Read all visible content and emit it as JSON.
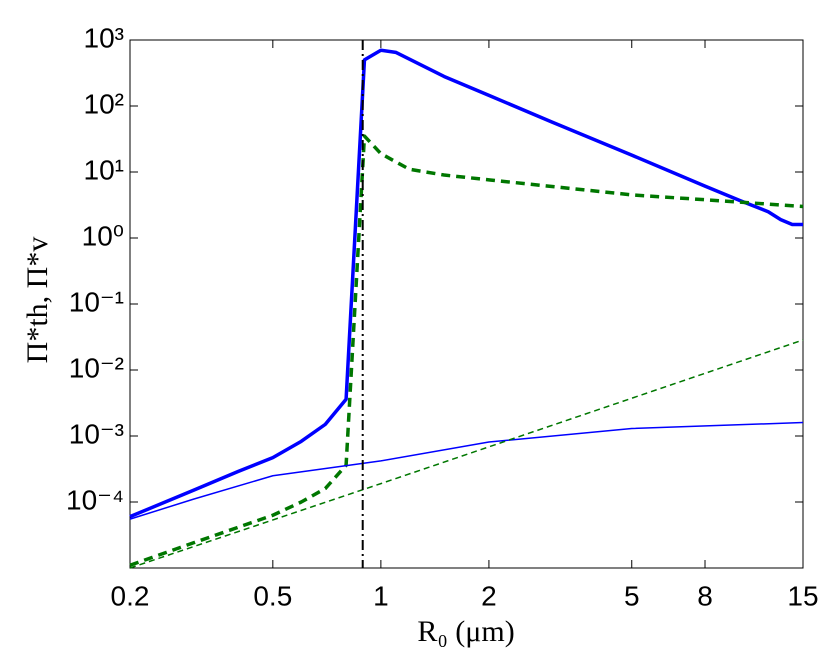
{
  "chart_data": {
    "type": "line",
    "x_label": "R₀ (μm)",
    "y_label": "Π*th, Π*v",
    "x_log": true,
    "y_log": true,
    "xlim": [
      0.2,
      15
    ],
    "ylim": [
      1e-05,
      1000
    ],
    "xticks": [
      0.2,
      0.5,
      1,
      2,
      5,
      8,
      15
    ],
    "yticks": [
      {
        "value": 0.0001,
        "label": "10⁻⁴"
      },
      {
        "value": 0.001,
        "label": "10⁻³"
      },
      {
        "value": 0.01,
        "label": "10⁻²"
      },
      {
        "value": 0.1,
        "label": "10⁻¹"
      },
      {
        "value": 1,
        "label": "10⁰"
      },
      {
        "value": 10,
        "label": "10¹"
      },
      {
        "value": 100,
        "label": "10²"
      },
      {
        "value": 1000,
        "label": "10³"
      }
    ],
    "vline": {
      "x": 0.89,
      "color": "#000000"
    },
    "series": [
      {
        "color": "#0000ff",
        "width": 3.5,
        "dash": "none",
        "x": [
          0.2,
          0.3,
          0.4,
          0.5,
          0.6,
          0.7,
          0.8,
          0.9,
          1.0,
          1.1,
          1.5,
          2,
          3,
          5,
          8,
          10,
          12,
          13,
          14,
          15
        ],
        "values": [
          6e-05,
          0.00015,
          0.00029,
          0.00047,
          0.00083,
          0.0015,
          0.0036,
          500,
          700,
          650,
          280,
          145,
          57,
          18,
          6.1,
          3.7,
          2.5,
          1.9,
          1.6,
          1.6
        ]
      },
      {
        "color": "#007700",
        "width": 3.5,
        "dash": "9 6",
        "x": [
          0.2,
          0.3,
          0.5,
          0.6,
          0.7,
          0.8,
          0.9,
          1.0,
          1.2,
          1.5,
          2,
          5,
          8,
          15
        ],
        "values": [
          1.1e-05,
          2.4e-05,
          6.3e-05,
          0.0001,
          0.00016,
          0.00036,
          35,
          19,
          11,
          9,
          7.6,
          4.5,
          3.8,
          3.0
        ]
      },
      {
        "color": "#0000ff",
        "width": 1.5,
        "dash": "none",
        "x": [
          0.2,
          0.3,
          0.5,
          1,
          2,
          5,
          15
        ],
        "values": [
          5.5e-05,
          0.00011,
          0.00025,
          0.00042,
          0.00081,
          0.0013,
          0.0016
        ]
      },
      {
        "color": "#007700",
        "width": 1.5,
        "dash": "6 4",
        "x": [
          0.2,
          1,
          15
        ],
        "values": [
          1e-05,
          0.00019,
          0.0285
        ]
      }
    ]
  }
}
